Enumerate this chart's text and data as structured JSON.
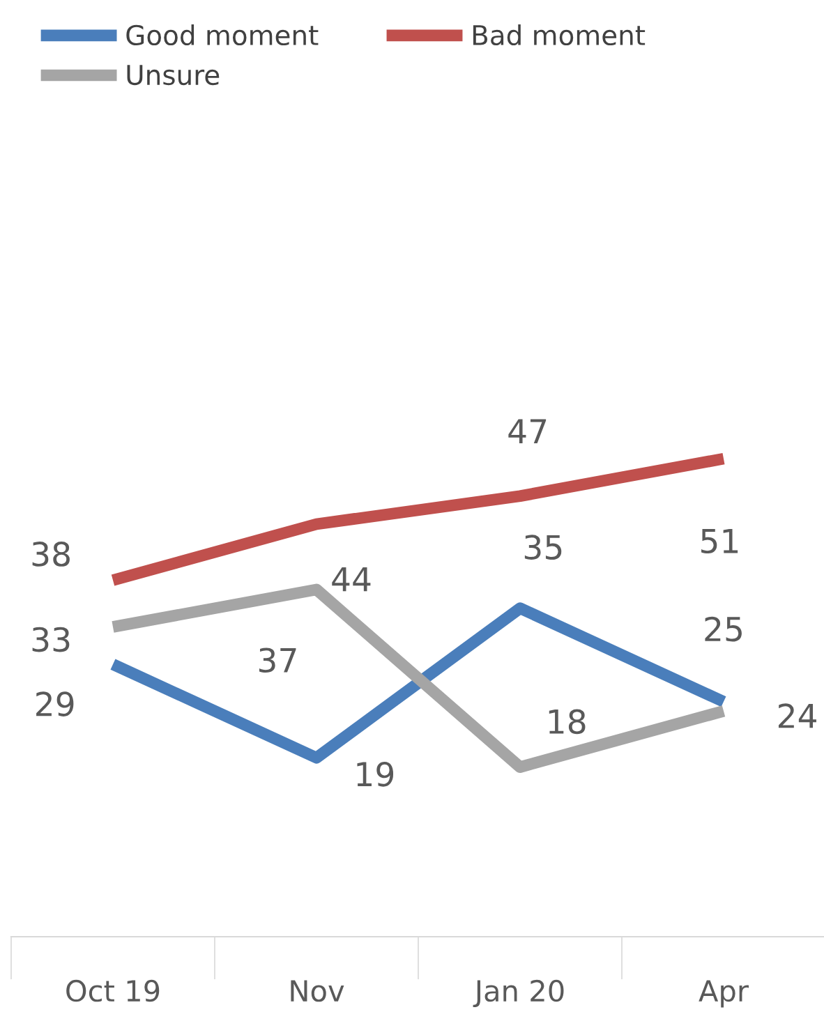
{
  "chart_data": {
    "type": "line",
    "categories": [
      "Oct 19",
      "Nov",
      "Jan 20",
      "Apr"
    ],
    "series": [
      {
        "name": "Good moment",
        "color": "#4a7ebb",
        "values": [
          29,
          19,
          35,
          25
        ]
      },
      {
        "name": "Bad moment",
        "color": "#c0504d",
        "values": [
          38,
          44,
          47,
          51
        ]
      },
      {
        "name": "Unsure",
        "color": "#a5a5a5",
        "values": [
          33,
          37,
          18,
          24
        ]
      }
    ],
    "data_labels": true,
    "legend": "top left",
    "grid": false,
    "marker": "none",
    "line_style": "solid"
  }
}
